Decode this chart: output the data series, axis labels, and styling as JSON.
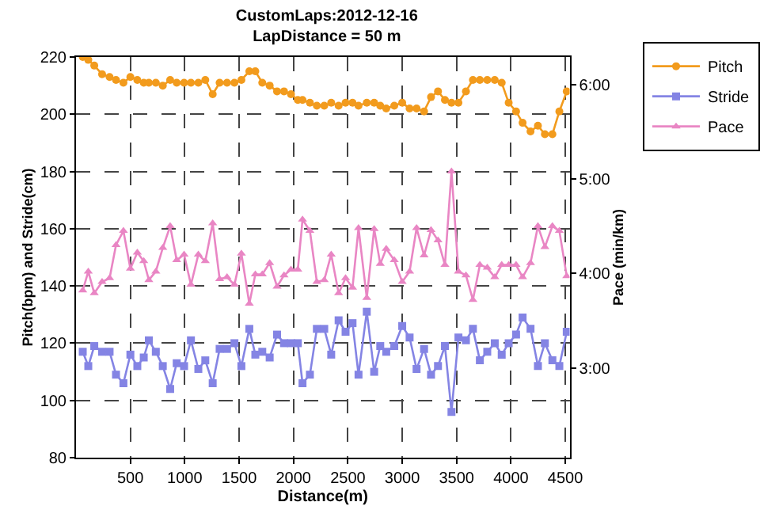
{
  "chart_data": {
    "type": "line",
    "title": "CustomLaps:2012-12-16",
    "subtitle": "LapDistance = 50 m",
    "xlabel": "Distance(m)",
    "ylabel": "Pitch(bpm) and Stride(cm)",
    "y2label": "Pace (min/km)",
    "x": [
      62,
      113,
      168,
      240,
      309,
      368,
      436,
      500,
      564,
      623,
      670,
      734,
      798,
      866,
      926,
      994,
      1057,
      1125,
      1189,
      1257,
      1321,
      1389,
      1457,
      1521,
      1594,
      1649,
      1713,
      1781,
      1849,
      1913,
      1977,
      2040,
      2083,
      2151,
      2215,
      2283,
      2347,
      2415,
      2479,
      2543,
      2598,
      2674,
      2742,
      2798,
      2853,
      2927,
      3000,
      3068,
      3132,
      3201,
      3265,
      3329,
      3393,
      3453,
      3517,
      3586,
      3650,
      3714,
      3782,
      3851,
      3915,
      3979,
      4047,
      4107,
      4180,
      4248,
      4312,
      4381,
      4445,
      4513
    ],
    "series": [
      {
        "name": "Pitch",
        "color": "#f29b1d",
        "marker": "circle",
        "values": [
          220,
          219,
          217,
          214,
          213,
          212,
          211,
          213,
          212,
          211,
          211,
          211,
          210,
          212,
          211,
          211,
          211,
          211,
          212,
          207,
          211,
          211,
          211,
          212,
          215,
          215,
          211,
          210,
          208,
          208,
          207,
          205,
          205,
          204,
          203,
          203,
          204,
          203,
          204,
          204,
          203,
          204,
          204,
          203,
          202,
          203,
          204,
          202,
          202,
          201,
          206,
          208,
          205,
          204,
          204,
          208,
          212,
          212,
          212,
          212,
          211,
          204,
          201,
          197,
          194,
          196,
          193,
          193,
          201,
          208
        ]
      },
      {
        "name": "Stride",
        "color": "#8484e4",
        "marker": "square",
        "values": [
          117,
          112,
          119,
          117,
          117,
          109,
          106,
          116,
          112,
          115,
          121,
          117,
          112,
          104,
          113,
          112,
          121,
          111,
          114,
          106,
          118,
          118,
          120,
          112,
          125,
          116,
          117,
          115,
          123,
          120,
          120,
          120,
          106,
          109,
          125,
          125,
          116,
          128,
          124,
          127,
          109,
          131,
          110,
          119,
          117,
          119,
          126,
          122,
          111,
          118,
          109,
          112,
          119,
          96,
          122,
          121,
          125,
          114,
          117,
          120,
          116,
          120,
          123,
          129,
          125,
          112,
          120,
          114,
          112,
          124
        ]
      },
      {
        "name": "Pace",
        "color": "#e986c4",
        "marker": "triangle",
        "axis": "y2",
        "values": [
          3.82,
          4.02,
          3.79,
          3.91,
          3.95,
          4.3,
          4.45,
          4.05,
          4.22,
          4.13,
          3.93,
          4.02,
          4.27,
          4.5,
          4.14,
          4.2,
          3.88,
          4.2,
          4.13,
          4.53,
          3.94,
          3.96,
          3.88,
          4.21,
          3.68,
          3.99,
          3.99,
          4.11,
          3.86,
          3.98,
          4.04,
          4.04,
          4.57,
          4.45,
          3.91,
          3.93,
          4.2,
          3.79,
          3.95,
          3.85,
          4.48,
          3.74,
          4.47,
          4.1,
          4.26,
          4.14,
          3.91,
          4.02,
          4.48,
          4.19,
          4.46,
          4.35,
          4.09,
          5.08,
          4.02,
          3.98,
          3.72,
          4.09,
          4.06,
          3.96,
          4.09,
          4.09,
          4.09,
          3.96,
          4.11,
          4.5,
          4.28,
          4.5,
          4.45,
          3.97
        ]
      }
    ],
    "xlim": [
      0,
      4540
    ],
    "xticks": [
      500,
      1000,
      1500,
      2000,
      2500,
      3000,
      3500,
      4000,
      4500
    ],
    "ylim": [
      80,
      220
    ],
    "yticks": [
      80,
      100,
      120,
      140,
      160,
      180,
      200,
      220
    ],
    "y2lim": [
      2.05,
      6.29
    ],
    "y2ticks": [
      {
        "value": 3,
        "label": "3:00"
      },
      {
        "value": 4,
        "label": "4:00"
      },
      {
        "value": 5,
        "label": "5:00"
      },
      {
        "value": 6,
        "label": "6:00"
      }
    ],
    "grid": true,
    "legend": "top right",
    "line_style": "solid"
  }
}
